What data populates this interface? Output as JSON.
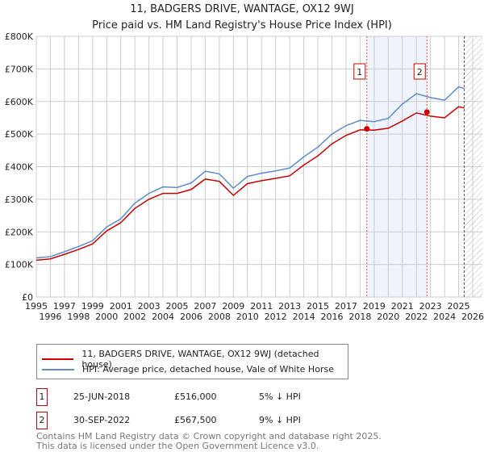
{
  "title": "11, BADGERS DRIVE, WANTAGE, OX12 9WJ",
  "subtitle": "Price paid vs. HM Land Registry's House Price Index (HPI)",
  "chart_data": {
    "type": "line",
    "title": "11, BADGERS DRIVE, WANTAGE, OX12 9WJ",
    "subtitle": "Price paid vs. HM Land Registry's House Price Index (HPI)",
    "xlim": [
      1995,
      2026
    ],
    "ylim": [
      0,
      800000
    ],
    "x_ticks": [
      "1995",
      "1996",
      "1997",
      "1998",
      "1999",
      "2000",
      "2001",
      "2002",
      "2003",
      "2004",
      "2005",
      "2006",
      "2007",
      "2008",
      "2009",
      "2010",
      "2011",
      "2012",
      "2013",
      "2014",
      "2015",
      "2016",
      "2017",
      "2018",
      "2019",
      "2020",
      "2021",
      "2022",
      "2023",
      "2024",
      "2025",
      "2026"
    ],
    "y_ticks": [
      {
        "v": 0,
        "label": "£0"
      },
      {
        "v": 100000,
        "label": "£100K"
      },
      {
        "v": 200000,
        "label": "£200K"
      },
      {
        "v": 300000,
        "label": "£300K"
      },
      {
        "v": 400000,
        "label": "£400K"
      },
      {
        "v": 500000,
        "label": "£500K"
      },
      {
        "v": 600000,
        "label": "£600K"
      },
      {
        "v": 700000,
        "label": "£700K"
      },
      {
        "v": 800000,
        "label": "£800K"
      }
    ],
    "grid": true,
    "x": [
      1995,
      1996,
      1997,
      1998,
      1999,
      2000,
      2001,
      2002,
      2003,
      2004,
      2005,
      2006,
      2007,
      2008,
      2009,
      2010,
      2011,
      2012,
      2013,
      2014,
      2015,
      2016,
      2017,
      2018,
      2019,
      2020,
      2021,
      2022,
      2023,
      2024,
      2025,
      2025.4
    ],
    "series": [
      {
        "name": "11, BADGERS DRIVE, WANTAGE, OX12 9WJ (detached house)",
        "color": "#cc0000",
        "values": [
          113000,
          117000,
          131000,
          146000,
          163000,
          203000,
          228000,
          272000,
          300000,
          318000,
          318000,
          330000,
          362000,
          355000,
          312000,
          348000,
          357000,
          364000,
          372000,
          405000,
          433000,
          470000,
          496000,
          513000,
          512000,
          518000,
          540000,
          565000,
          555000,
          550000,
          584000,
          580000
        ]
      },
      {
        "name": "HPI: Average price, detached house, Vale of White Horse",
        "color": "#5b8bd0",
        "values": [
          120000,
          124000,
          139000,
          155000,
          173000,
          215000,
          240000,
          288000,
          318000,
          338000,
          336000,
          350000,
          386000,
          378000,
          334000,
          370000,
          380000,
          387000,
          396000,
          430000,
          460000,
          500000,
          526000,
          542000,
          538000,
          548000,
          592000,
          624000,
          612000,
          604000,
          645000,
          640000
        ]
      }
    ],
    "sales": [
      {
        "id": "1",
        "x": 2018.48,
        "price": 516000
      },
      {
        "id": "2",
        "x": 2022.75,
        "price": 567500
      }
    ],
    "shaded_range": [
      2018.48,
      2022.75
    ],
    "hatched_from": 2025.4,
    "legend_placement": "below"
  },
  "legend": [
    {
      "label": "11, BADGERS DRIVE, WANTAGE, OX12 9WJ (detached house)",
      "color": "#cc0000"
    },
    {
      "label": "HPI: Average price, detached house, Vale of White Horse",
      "color": "#5b8bd0"
    }
  ],
  "transactions": [
    {
      "id": "1",
      "date": "25-JUN-2018",
      "price": "£516,000",
      "delta": "5% ↓ HPI"
    },
    {
      "id": "2",
      "date": "30-SEP-2022",
      "price": "£567,500",
      "delta": "9% ↓ HPI"
    }
  ],
  "footer": [
    "Contains HM Land Registry data © Crown copyright and database right 2025.",
    "This data is licensed under the Open Government Licence v3.0."
  ]
}
